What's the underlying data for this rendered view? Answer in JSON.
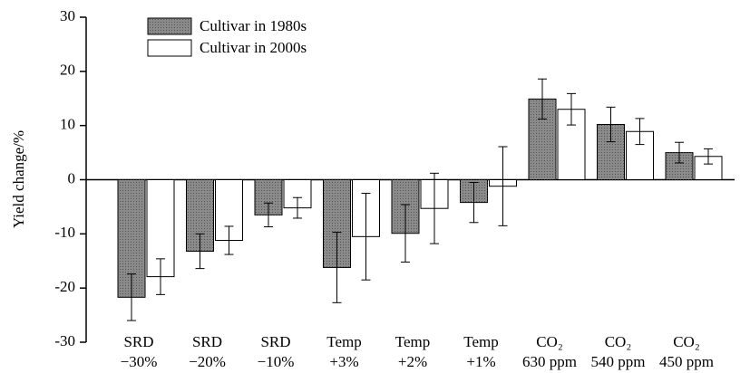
{
  "chart_data": {
    "type": "bar",
    "y_label": "Yield change/%",
    "categories": [
      [
        "SRD",
        "−30%"
      ],
      [
        "SRD",
        "−20%"
      ],
      [
        "SRD",
        "−10%"
      ],
      [
        "Temp",
        "+3%"
      ],
      [
        "Temp",
        "+2%"
      ],
      [
        "Temp",
        "+1%"
      ],
      [
        "CO₂",
        "630 ppm"
      ],
      [
        "CO₂",
        "540 ppm"
      ],
      [
        "CO₂",
        "450 ppm"
      ]
    ],
    "series": [
      {
        "name": "Cultivar in 1980s",
        "color": "#8a8a8a",
        "values": [
          -21.7,
          -13.2,
          -6.5,
          -16.2,
          -9.9,
          -4.2,
          14.9,
          10.2,
          5.0
        ],
        "errors": [
          4.3,
          3.2,
          2.2,
          6.5,
          5.3,
          3.7,
          3.7,
          3.2,
          1.9
        ]
      },
      {
        "name": "Cultivar in 2000s",
        "color": "#ffffff",
        "values": [
          -17.9,
          -11.2,
          -5.2,
          -10.5,
          -5.3,
          -1.2,
          13.0,
          8.9,
          4.3
        ],
        "errors": [
          3.3,
          2.6,
          1.9,
          8.0,
          6.5,
          7.3,
          2.9,
          2.4,
          1.4
        ]
      }
    ],
    "ylim": [
      -30,
      30
    ],
    "yticks": [
      -30,
      -20,
      -10,
      0,
      10,
      20,
      30
    ],
    "legend": "upper-left"
  }
}
